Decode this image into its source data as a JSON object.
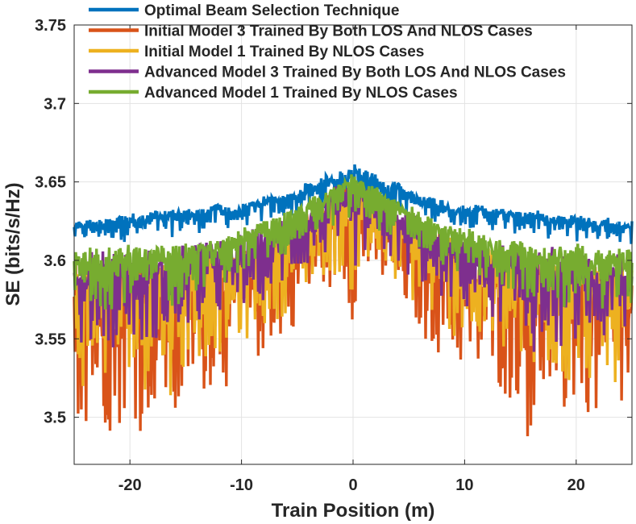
{
  "chart_data": {
    "type": "line",
    "title": "",
    "xlabel": "Train Position (m)",
    "ylabel": "SE (bits/s/Hz)",
    "xlim": [
      -25,
      25
    ],
    "ylim": [
      3.47,
      3.75
    ],
    "xticks": [
      -20,
      -10,
      0,
      10,
      20
    ],
    "xtick_labels": [
      "-20",
      "-10",
      "0",
      "10",
      "20"
    ],
    "yticks": [
      3.5,
      3.55,
      3.6,
      3.65,
      3.7,
      3.75
    ],
    "ytick_labels": [
      "3.5",
      "3.55",
      "3.6",
      "3.65",
      "3.7",
      "3.75"
    ],
    "grid": true,
    "legend_position": "top",
    "x": [
      -25,
      -24,
      -23,
      -22,
      -21,
      -20,
      -19,
      -18,
      -17,
      -16,
      -15,
      -14,
      -13,
      -12,
      -11,
      -10,
      -9,
      -8,
      -7,
      -6,
      -5,
      -4,
      -3,
      -2,
      -1,
      0,
      1,
      2,
      3,
      4,
      5,
      6,
      7,
      8,
      9,
      10,
      11,
      12,
      13,
      14,
      15,
      16,
      17,
      18,
      19,
      20,
      21,
      22,
      23,
      24,
      25
    ],
    "series": [
      {
        "name": "Optimal Beam Selection Technique",
        "color": "#0072BD",
        "band_upper": [
          3.625,
          3.627,
          3.626,
          3.629,
          3.63,
          3.631,
          3.628,
          3.633,
          3.631,
          3.635,
          3.634,
          3.633,
          3.634,
          3.638,
          3.634,
          3.636,
          3.639,
          3.641,
          3.643,
          3.642,
          3.646,
          3.651,
          3.652,
          3.658,
          3.657,
          3.662,
          3.659,
          3.655,
          3.648,
          3.652,
          3.646,
          3.643,
          3.641,
          3.64,
          3.635,
          3.635,
          3.636,
          3.635,
          3.634,
          3.633,
          3.632,
          3.633,
          3.631,
          3.63,
          3.63,
          3.63,
          3.628,
          3.627,
          3.628,
          3.626,
          3.625
        ],
        "band_lower": [
          3.61,
          3.611,
          3.612,
          3.611,
          3.613,
          3.61,
          3.612,
          3.614,
          3.613,
          3.615,
          3.616,
          3.617,
          3.618,
          3.619,
          3.62,
          3.621,
          3.622,
          3.623,
          3.625,
          3.627,
          3.628,
          3.63,
          3.632,
          3.634,
          3.636,
          3.638,
          3.636,
          3.634,
          3.632,
          3.63,
          3.628,
          3.627,
          3.625,
          3.623,
          3.622,
          3.621,
          3.62,
          3.619,
          3.618,
          3.617,
          3.616,
          3.615,
          3.613,
          3.614,
          3.612,
          3.61,
          3.613,
          3.611,
          3.612,
          3.611,
          3.61
        ]
      },
      {
        "name": "Initial Model 3 Trained By Both LOS And NLOS Cases",
        "color": "#D95319",
        "band_upper": [
          3.6,
          3.6,
          3.601,
          3.6,
          3.602,
          3.601,
          3.603,
          3.602,
          3.604,
          3.603,
          3.606,
          3.605,
          3.607,
          3.608,
          3.61,
          3.612,
          3.614,
          3.616,
          3.62,
          3.624,
          3.628,
          3.633,
          3.638,
          3.643,
          3.647,
          3.655,
          3.647,
          3.643,
          3.638,
          3.633,
          3.628,
          3.624,
          3.62,
          3.616,
          3.614,
          3.612,
          3.61,
          3.608,
          3.607,
          3.605,
          3.606,
          3.603,
          3.604,
          3.602,
          3.603,
          3.601,
          3.602,
          3.6,
          3.601,
          3.6,
          3.6
        ],
        "band_lower": [
          3.48,
          3.492,
          3.497,
          3.488,
          3.49,
          3.505,
          3.487,
          3.499,
          3.507,
          3.47,
          3.51,
          3.505,
          3.516,
          3.52,
          3.515,
          3.525,
          3.53,
          3.536,
          3.542,
          3.55,
          3.56,
          3.568,
          3.575,
          3.58,
          3.582,
          3.56,
          3.582,
          3.58,
          3.575,
          3.568,
          3.56,
          3.55,
          3.542,
          3.536,
          3.53,
          3.525,
          3.515,
          3.52,
          3.516,
          3.505,
          3.51,
          3.47,
          3.507,
          3.499,
          3.487,
          3.505,
          3.49,
          3.488,
          3.497,
          3.492,
          3.48
        ]
      },
      {
        "name": "Initial Model 1 Trained By NLOS Cases",
        "color": "#EDB120",
        "band_upper": [
          3.6,
          3.601,
          3.6,
          3.602,
          3.601,
          3.603,
          3.602,
          3.604,
          3.603,
          3.605,
          3.606,
          3.606,
          3.608,
          3.609,
          3.611,
          3.613,
          3.615,
          3.617,
          3.621,
          3.625,
          3.629,
          3.634,
          3.639,
          3.644,
          3.648,
          3.655,
          3.648,
          3.644,
          3.639,
          3.634,
          3.629,
          3.625,
          3.621,
          3.617,
          3.615,
          3.613,
          3.611,
          3.609,
          3.608,
          3.606,
          3.606,
          3.605,
          3.603,
          3.604,
          3.602,
          3.603,
          3.601,
          3.602,
          3.6,
          3.601,
          3.6
        ],
        "band_lower": [
          3.52,
          3.515,
          3.525,
          3.518,
          3.522,
          3.53,
          3.512,
          3.524,
          3.528,
          3.505,
          3.53,
          3.533,
          3.538,
          3.54,
          3.538,
          3.545,
          3.55,
          3.555,
          3.56,
          3.566,
          3.572,
          3.58,
          3.586,
          3.59,
          3.588,
          3.575,
          3.588,
          3.59,
          3.586,
          3.58,
          3.572,
          3.566,
          3.56,
          3.555,
          3.55,
          3.545,
          3.538,
          3.54,
          3.538,
          3.533,
          3.53,
          3.505,
          3.528,
          3.524,
          3.512,
          3.53,
          3.522,
          3.518,
          3.525,
          3.515,
          3.52
        ]
      },
      {
        "name": "Advanced Model 3 Trained By Both LOS And NLOS Cases",
        "color": "#7E2F8E",
        "band_upper": [
          3.605,
          3.606,
          3.605,
          3.607,
          3.606,
          3.608,
          3.607,
          3.609,
          3.608,
          3.61,
          3.611,
          3.611,
          3.613,
          3.614,
          3.616,
          3.618,
          3.62,
          3.622,
          3.625,
          3.629,
          3.633,
          3.637,
          3.641,
          3.646,
          3.649,
          3.656,
          3.649,
          3.646,
          3.641,
          3.637,
          3.633,
          3.629,
          3.625,
          3.622,
          3.62,
          3.618,
          3.616,
          3.614,
          3.613,
          3.611,
          3.611,
          3.61,
          3.608,
          3.609,
          3.607,
          3.608,
          3.606,
          3.607,
          3.605,
          3.606,
          3.605
        ],
        "band_lower": [
          3.545,
          3.54,
          3.548,
          3.542,
          3.546,
          3.55,
          3.538,
          3.547,
          3.552,
          3.535,
          3.553,
          3.556,
          3.56,
          3.562,
          3.561,
          3.566,
          3.57,
          3.574,
          3.578,
          3.583,
          3.588,
          3.594,
          3.599,
          3.602,
          3.6,
          3.592,
          3.6,
          3.602,
          3.599,
          3.594,
          3.588,
          3.583,
          3.578,
          3.574,
          3.57,
          3.566,
          3.561,
          3.562,
          3.56,
          3.556,
          3.553,
          3.535,
          3.552,
          3.547,
          3.538,
          3.55,
          3.546,
          3.542,
          3.548,
          3.54,
          3.545
        ]
      },
      {
        "name": "Advanced Model 1 Trained By NLOS Cases",
        "color": "#77AC30",
        "band_upper": [
          3.608,
          3.609,
          3.608,
          3.61,
          3.609,
          3.611,
          3.61,
          3.612,
          3.611,
          3.613,
          3.614,
          3.614,
          3.616,
          3.617,
          3.619,
          3.621,
          3.623,
          3.625,
          3.628,
          3.632,
          3.636,
          3.64,
          3.644,
          3.648,
          3.651,
          3.657,
          3.651,
          3.648,
          3.644,
          3.64,
          3.636,
          3.632,
          3.628,
          3.625,
          3.623,
          3.621,
          3.619,
          3.617,
          3.616,
          3.614,
          3.614,
          3.613,
          3.611,
          3.612,
          3.61,
          3.611,
          3.609,
          3.61,
          3.608,
          3.609,
          3.608
        ],
        "band_lower": [
          3.57,
          3.565,
          3.572,
          3.567,
          3.571,
          3.574,
          3.566,
          3.572,
          3.576,
          3.563,
          3.578,
          3.58,
          3.583,
          3.585,
          3.585,
          3.589,
          3.592,
          3.596,
          3.599,
          3.603,
          3.607,
          3.612,
          3.616,
          3.62,
          3.622,
          3.62,
          3.622,
          3.62,
          3.616,
          3.612,
          3.607,
          3.603,
          3.599,
          3.596,
          3.592,
          3.589,
          3.585,
          3.585,
          3.583,
          3.58,
          3.578,
          3.563,
          3.576,
          3.572,
          3.566,
          3.574,
          3.571,
          3.567,
          3.572,
          3.565,
          3.57
        ]
      }
    ]
  }
}
